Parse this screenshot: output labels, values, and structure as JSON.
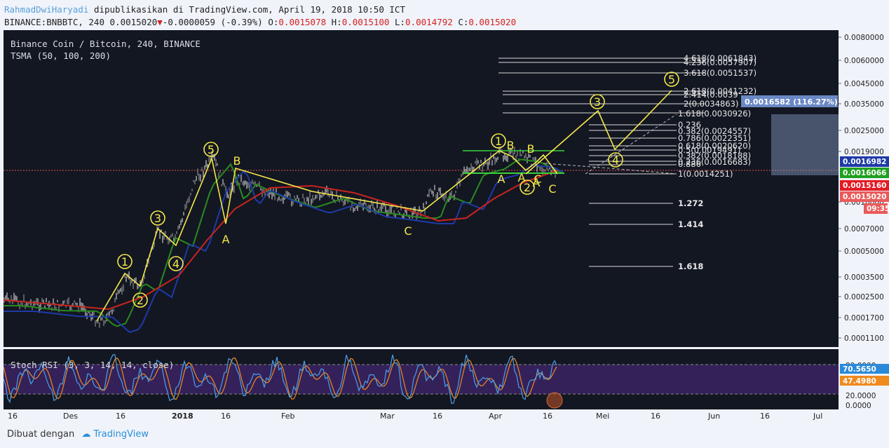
{
  "header": {
    "author": "RahmadDwiHaryadi",
    "published": "dipublikasikan di TradingView.com, April 19, 2018 10:50 ICT",
    "symbol": "BINANCE:BNBBTC, 240",
    "price": "0.0015020",
    "change": "-0.0000059 (-0.39%)",
    "o_label": "O:",
    "o_val": "0.0015078",
    "h_label": "H:",
    "h_val": "0.0015100",
    "l_label": "L:",
    "l_val": "0.0014792",
    "c_label": "C:",
    "c_val": "0.0015020"
  },
  "legend": {
    "title": "Binance Coin / Bitcoin, 240, BINANCE",
    "indicator": "TSMA (50, 100, 200)",
    "oscillator": "Stoch RSI (3, 3, 14, 14, close)"
  },
  "footer": {
    "made_with": "Dibuat dengan",
    "brand": "TradingView"
  },
  "colors": {
    "price_label_blue": "#1e3aa8",
    "price_label_green": "#1fa01f",
    "price_label_red": "#e31b23",
    "price_label_salmon": "#ea5a5a",
    "wave": "#f5e84a",
    "ma_red": "#c8241e",
    "ma_blue": "#1e3aa8",
    "ma_green": "#2a8a1f"
  },
  "chart_data": {
    "type": "line",
    "scale": "log",
    "price_axis_ticks": [
      "0.0080000",
      "0.0060000",
      "0.0045000",
      "0.0035000",
      "0.0025000",
      "0.0019000",
      "0.0010000",
      "0.0007000",
      "0.0005000",
      "0.0003500",
      "0.0002500",
      "0.0001700",
      "0.0001100"
    ],
    "price_labels": [
      {
        "text": "0.0016982",
        "color": "blue"
      },
      {
        "text": "0.0016066",
        "color": "green"
      },
      {
        "text": "0.0015160",
        "color": "red"
      },
      {
        "text": "0.0015020",
        "color": "salmon"
      },
      {
        "text": "09:35",
        "color": "salmon"
      }
    ],
    "time_axis": [
      "16",
      "Des",
      "16",
      "2018",
      "16",
      "Feb",
      "Mar",
      "16",
      "Apr",
      "16",
      "Mei",
      "16",
      "Jun",
      "16",
      "Jul"
    ],
    "fib_levels": [
      "4.618(0.0061843)",
      "4.236(0.0057907)",
      "3.618(0.0051537)",
      "2.618(0.0041232)",
      "2.414(0.0039",
      "2(0.0034863)",
      "1.618(0.0030926)",
      "0.236",
      "0.382(0.0024557)",
      "0.786(0.0022351)",
      "0.618(0.0020620)",
      "0.5(0.0019491)",
      "0.382(0.0018188)",
      "0.236(0.0016683)",
      "0.886",
      "1(0.0014251)",
      "1.272",
      "1.414",
      "1.618"
    ],
    "wave_labels": [
      "1",
      "2",
      "3",
      "4",
      "5",
      "B",
      "A",
      "C",
      "1",
      "B",
      "B",
      "A",
      "C",
      "A",
      "2",
      "A",
      "C",
      "3",
      "4",
      "5"
    ],
    "projection_box": "0.0016582 (116.27%)",
    "stoch_ticks": [
      "80.0000",
      "20.0000",
      "0.0000"
    ],
    "stoch_values": {
      "k": "70.5650",
      "d": "47.4980"
    },
    "series": [
      {
        "x": [
          "Nov 16",
          "Des 1",
          "Des 16",
          "Jan 1",
          "Jan 16",
          "Feb 1",
          "Feb 16",
          "Mar 1",
          "Mar 16",
          "Apr 1",
          "Apr 16"
        ],
        "values": [
          0.00021,
          0.00019,
          0.00017,
          0.0006,
          0.0017,
          0.0012,
          0.0011,
          0.001,
          0.00095,
          0.00185,
          0.0015
        ]
      }
    ]
  }
}
